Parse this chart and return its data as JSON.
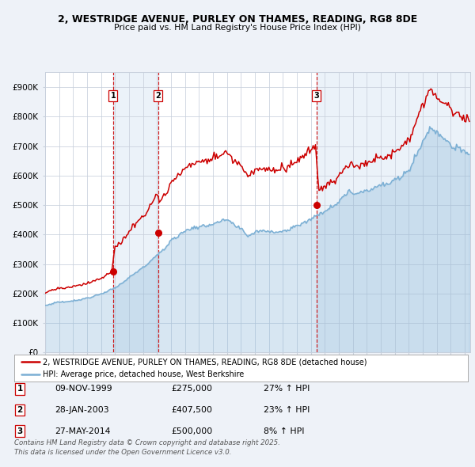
{
  "title1": "2, WESTRIDGE AVENUE, PURLEY ON THAMES, READING, RG8 8DE",
  "title2": "Price paid vs. HM Land Registry's House Price Index (HPI)",
  "legend1": "2, WESTRIDGE AVENUE, PURLEY ON THAMES, READING, RG8 8DE (detached house)",
  "legend2": "HPI: Average price, detached house, West Berkshire",
  "sale_labels": [
    "1",
    "2",
    "3"
  ],
  "sale_dates_str": [
    "09-NOV-1999",
    "28-JAN-2003",
    "27-MAY-2014"
  ],
  "sale_prices": [
    275000,
    407500,
    500000
  ],
  "sale_pct": [
    "27% ↑ HPI",
    "23% ↑ HPI",
    "8% ↑ HPI"
  ],
  "sale_years": [
    1999.86,
    2003.07,
    2014.41
  ],
  "ylabel_ticks": [
    "£0",
    "£100K",
    "£200K",
    "£300K",
    "£400K",
    "£500K",
    "£600K",
    "£700K",
    "£800K",
    "£900K"
  ],
  "ytick_vals": [
    0,
    100000,
    200000,
    300000,
    400000,
    500000,
    600000,
    700000,
    800000,
    900000
  ],
  "hpi_color": "#7bafd4",
  "price_color": "#cc0000",
  "background_color": "#eef2f8",
  "plot_bg": "#ffffff",
  "grid_color": "#c8d0dc",
  "dashed_color": "#cc0000",
  "shade_color": "#c8daf0",
  "footer": "Contains HM Land Registry data © Crown copyright and database right 2025.\nThis data is licensed under the Open Government Licence v3.0."
}
